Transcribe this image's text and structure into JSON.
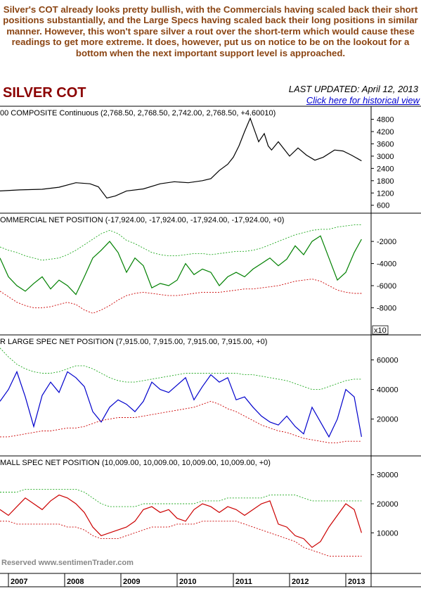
{
  "intro_text": "Silver's COT already looks pretty bullish, with the Commercials having scaled back their short positions substantially, and the Large Specs having scaled back their long positions in similar manner. However, this won't spare silver a rout over the short-term which would cause these readings to get more extreme. It does, however, put us on notice to be on the lookout for a bottom when the next important support level is approached.",
  "title": "SILVER COT",
  "last_updated": "LAST UPDATED:  April 12, 2013",
  "historical_link": "Click here for historical view",
  "copyright": "Reserved  www.sentimenTrader.com",
  "colors": {
    "price": "#000000",
    "commercial": "#008000",
    "large": "#0000CC",
    "small": "#CC0000",
    "title": "#8B0000",
    "intro": "#8B4513"
  },
  "chart_data": [
    {
      "type": "line",
      "title": "00 COMPOSITE Continuous (2,768.50, 2,768.50, 2,742.00, 2,768.50, +4.60010)",
      "yticks": [
        4800,
        4200,
        3600,
        3000,
        2400,
        1800,
        1200,
        600
      ],
      "ylim": [
        350,
        5300
      ],
      "x": [
        2006.85,
        2007.2,
        2007.6,
        2007.9,
        2008.2,
        2008.45,
        2008.6,
        2008.75,
        2008.9,
        2009.1,
        2009.4,
        2009.7,
        2009.95,
        2010.2,
        2010.45,
        2010.6,
        2010.75,
        2010.9,
        2011.0,
        2011.1,
        2011.2,
        2011.3,
        2011.45,
        2011.55,
        2011.62,
        2011.68,
        2011.8,
        2012.0,
        2012.15,
        2012.3,
        2012.45,
        2012.6,
        2012.8,
        2012.95,
        2013.1,
        2013.28
      ],
      "series": [
        {
          "values": [
            1300,
            1350,
            1380,
            1480,
            1700,
            1650,
            1500,
            950,
            1050,
            1300,
            1400,
            1650,
            1750,
            1700,
            1800,
            1900,
            2300,
            2600,
            2950,
            3500,
            4200,
            4850,
            3700,
            4100,
            3500,
            3300,
            3700,
            3000,
            3400,
            3050,
            2800,
            2950,
            3300,
            3250,
            3050,
            2769
          ]
        }
      ]
    },
    {
      "type": "line",
      "title": "OMMERCIAL NET POSITION (-17,924.00, -17,924.00, -17,924.00, -17,924.00, +0)",
      "yticks": [
        -2000,
        -4000,
        -6000,
        -8000
      ],
      "ylim": [
        -10200,
        300
      ],
      "y_multiplier": "x10",
      "x": [
        2006.85,
        2007.0,
        2007.15,
        2007.3,
        2007.45,
        2007.6,
        2007.75,
        2007.9,
        2008.05,
        2008.2,
        2008.35,
        2008.5,
        2008.65,
        2008.8,
        2008.95,
        2009.1,
        2009.25,
        2009.4,
        2009.55,
        2009.7,
        2009.85,
        2010.0,
        2010.15,
        2010.3,
        2010.45,
        2010.6,
        2010.75,
        2010.9,
        2011.05,
        2011.2,
        2011.35,
        2011.5,
        2011.65,
        2011.8,
        2011.95,
        2012.1,
        2012.25,
        2012.4,
        2012.55,
        2012.7,
        2012.85,
        2013.0,
        2013.15,
        2013.28
      ],
      "series": [
        {
          "name": "net",
          "values": [
            -3500,
            -5200,
            -6000,
            -6500,
            -5800,
            -5200,
            -6300,
            -5500,
            -6000,
            -6800,
            -5200,
            -3500,
            -2800,
            -2000,
            -3000,
            -4800,
            -3500,
            -4200,
            -6200,
            -5800,
            -6000,
            -5500,
            -4000,
            -5000,
            -4500,
            -4800,
            -6000,
            -5200,
            -4800,
            -5200,
            -4500,
            -4000,
            -3500,
            -4200,
            -3600,
            -2400,
            -3200,
            -2000,
            -1500,
            -3500,
            -5500,
            -4800,
            -3000,
            -1800
          ]
        },
        {
          "name": "upper-band",
          "values": [
            -2500,
            -2800,
            -3000,
            -3300,
            -3500,
            -3700,
            -3600,
            -3500,
            -3200,
            -2800,
            -2300,
            -1800,
            -1300,
            -1000,
            -1300,
            -1900,
            -2200,
            -2600,
            -3000,
            -3200,
            -3300,
            -3300,
            -3200,
            -3100,
            -3100,
            -3200,
            -3100,
            -3000,
            -2900,
            -2900,
            -2800,
            -2600,
            -2300,
            -2000,
            -1700,
            -1400,
            -1200,
            -1000,
            -900,
            -900,
            -700,
            -600,
            -500,
            -500
          ]
        },
        {
          "name": "lower-band",
          "values": [
            -6500,
            -7000,
            -7500,
            -7800,
            -8000,
            -8000,
            -7900,
            -7700,
            -7500,
            -7700,
            -8200,
            -8500,
            -8200,
            -7800,
            -7300,
            -6900,
            -6700,
            -6600,
            -6700,
            -6800,
            -6900,
            -6900,
            -6800,
            -6700,
            -6600,
            -6600,
            -6600,
            -6500,
            -6400,
            -6300,
            -6300,
            -6200,
            -6100,
            -6000,
            -5800,
            -5600,
            -5500,
            -5400,
            -5600,
            -6000,
            -6400,
            -6600,
            -6700,
            -6700
          ]
        }
      ]
    },
    {
      "type": "line",
      "title": "R LARGE SPEC NET POSITION (7,915.00, 7,915.00, 7,915.00, 7,915.00, +0)",
      "yticks": [
        60000,
        40000,
        20000
      ],
      "ylim": [
        -3000,
        75000
      ],
      "x": [
        2006.85,
        2007.0,
        2007.15,
        2007.3,
        2007.45,
        2007.6,
        2007.75,
        2007.9,
        2008.05,
        2008.2,
        2008.35,
        2008.5,
        2008.65,
        2008.8,
        2008.95,
        2009.1,
        2009.25,
        2009.4,
        2009.55,
        2009.7,
        2009.85,
        2010.0,
        2010.15,
        2010.3,
        2010.45,
        2010.6,
        2010.75,
        2010.9,
        2011.05,
        2011.2,
        2011.35,
        2011.5,
        2011.65,
        2011.8,
        2011.95,
        2012.1,
        2012.25,
        2012.4,
        2012.55,
        2012.7,
        2012.85,
        2013.0,
        2013.15,
        2013.28
      ],
      "series": [
        {
          "name": "net",
          "values": [
            32000,
            40000,
            52000,
            35000,
            15000,
            36000,
            45000,
            38000,
            52000,
            48000,
            42000,
            25000,
            18000,
            28000,
            33000,
            30000,
            25000,
            32000,
            45000,
            40000,
            38000,
            43000,
            48000,
            33000,
            42000,
            50000,
            45000,
            48000,
            33000,
            35000,
            28000,
            22000,
            18000,
            16000,
            22000,
            15000,
            10000,
            28000,
            18000,
            8000,
            20000,
            40000,
            35000,
            8000
          ]
        },
        {
          "name": "upper-band",
          "values": [
            68000,
            62000,
            57000,
            54000,
            52000,
            51000,
            51000,
            52000,
            54000,
            56000,
            56000,
            54000,
            51000,
            48000,
            46000,
            45000,
            45000,
            46000,
            47000,
            48000,
            49000,
            50000,
            51000,
            51000,
            51000,
            51000,
            51000,
            51000,
            51000,
            50000,
            50000,
            49000,
            48000,
            47000,
            46000,
            44000,
            42000,
            40000,
            40000,
            42000,
            44000,
            46000,
            47000,
            47000
          ]
        },
        {
          "name": "lower-band",
          "values": [
            8000,
            8000,
            9000,
            10000,
            11000,
            12000,
            12000,
            13000,
            14000,
            14000,
            15000,
            17000,
            19000,
            20000,
            21000,
            21000,
            21000,
            22000,
            23000,
            24000,
            25000,
            26000,
            27000,
            28000,
            30000,
            32000,
            30000,
            27000,
            25000,
            22000,
            19000,
            16000,
            14000,
            12000,
            11000,
            9000,
            7000,
            6000,
            5000,
            4000,
            4000,
            5000,
            5000,
            5000
          ]
        }
      ]
    },
    {
      "type": "line",
      "title": "MALL SPEC NET POSITION (10,009.00, 10,009.00, 10,009.00, 10,009.00, +0)",
      "yticks": [
        30000,
        20000,
        10000
      ],
      "ylim": [
        -3000,
        35500
      ],
      "x": [
        2006.85,
        2007.0,
        2007.15,
        2007.3,
        2007.45,
        2007.6,
        2007.75,
        2007.9,
        2008.05,
        2008.2,
        2008.35,
        2008.5,
        2008.65,
        2008.8,
        2008.95,
        2009.1,
        2009.25,
        2009.4,
        2009.55,
        2009.7,
        2009.85,
        2010.0,
        2010.15,
        2010.3,
        2010.45,
        2010.6,
        2010.75,
        2010.9,
        2011.05,
        2011.2,
        2011.35,
        2011.5,
        2011.65,
        2011.8,
        2011.95,
        2012.1,
        2012.25,
        2012.4,
        2012.55,
        2012.7,
        2012.85,
        2013.0,
        2013.15,
        2013.28
      ],
      "series": [
        {
          "name": "net",
          "values": [
            18000,
            16000,
            19000,
            22000,
            20000,
            18000,
            21000,
            23000,
            22000,
            20000,
            17000,
            12000,
            9000,
            10000,
            11000,
            12000,
            14000,
            18000,
            19000,
            17000,
            18000,
            15000,
            14000,
            18000,
            20000,
            19000,
            17000,
            19000,
            18000,
            16000,
            18000,
            20000,
            21000,
            13000,
            12000,
            9000,
            8000,
            5000,
            7000,
            12000,
            16000,
            20000,
            18000,
            10000
          ]
        },
        {
          "name": "upper-band",
          "values": [
            24000,
            24000,
            24000,
            25000,
            25000,
            25000,
            25000,
            25000,
            25000,
            25000,
            24000,
            22000,
            20000,
            19000,
            19000,
            19000,
            19000,
            20000,
            20000,
            20000,
            20000,
            20000,
            20000,
            20000,
            21000,
            21000,
            21000,
            22000,
            22000,
            22000,
            22000,
            22000,
            23000,
            23000,
            23000,
            23000,
            22000,
            21000,
            21000,
            21000,
            21000,
            21000,
            21000,
            21000
          ]
        },
        {
          "name": "lower-band",
          "values": [
            14000,
            14000,
            13000,
            13000,
            13000,
            13000,
            13000,
            13000,
            12000,
            12000,
            11000,
            9000,
            8000,
            8000,
            8000,
            9000,
            10000,
            11000,
            12000,
            12000,
            12000,
            13000,
            13000,
            13000,
            14000,
            14000,
            14000,
            14000,
            14000,
            13000,
            12000,
            11000,
            10000,
            9000,
            8000,
            7000,
            5000,
            4000,
            3000,
            2000,
            2000,
            2000,
            2000,
            2000
          ]
        }
      ]
    }
  ],
  "x_axis": {
    "ticks": [
      2007,
      2008,
      2009,
      2010,
      2011,
      2012,
      2013
    ],
    "labels": [
      "2007",
      "2008",
      "2009",
      "2010",
      "2011",
      "2012",
      "2013"
    ]
  }
}
